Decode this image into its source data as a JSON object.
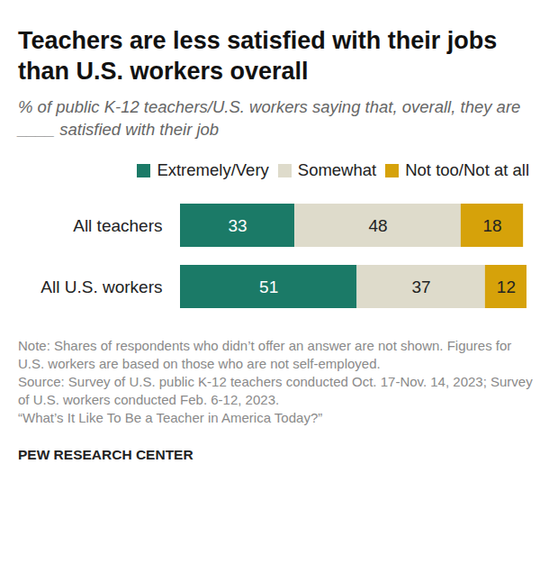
{
  "chart_data": {
    "type": "bar",
    "title": "Teachers are less satisfied with their jobs than U.S. workers overall",
    "subtitle": "% of public K-12 teachers/U.S. workers saying that, overall, they are ____ satisfied with their job",
    "orientation": "horizontal",
    "stacked": true,
    "data_labels": true,
    "tick_labels": "y",
    "legend": "top",
    "categories": [
      "All teachers",
      "All U.S. workers"
    ],
    "series": [
      {
        "name": "Extremely/Very",
        "color": "#1b7a67",
        "values": [
          33,
          51
        ]
      },
      {
        "name": "Somewhat",
        "color": "#dedbcb",
        "values": [
          48,
          37
        ]
      },
      {
        "name": "Not too/Not at all",
        "color": "#d6a20a",
        "values": [
          18,
          12
        ]
      }
    ],
    "xlim": [
      0,
      100
    ],
    "notes": [
      "Note: Shares of respondents who didn’t offer an answer are not shown. Figures for U.S. workers are based on those who are not self-employed.",
      "Source: Survey of U.S. public K-12 teachers conducted Oct. 17-Nov. 14, 2023; Survey of U.S. workers conducted Feb. 6-12, 2023.",
      "“What’s It Like To Be a Teacher in America Today?”"
    ],
    "credit": "PEW RESEARCH CENTER"
  }
}
